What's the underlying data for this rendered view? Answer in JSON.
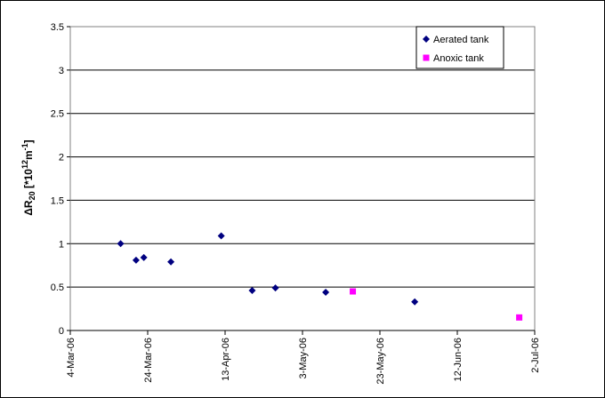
{
  "chart_data": {
    "type": "scatter",
    "title": "",
    "xlabel": "",
    "ylabel": "ΔR20 [*10^12 m^-1]",
    "ylabel_parts": {
      "main": "ΔR",
      "sub": "20",
      "bracket_open": " [*10",
      "sup1": "12",
      "unit": "m",
      "sup2": "-1",
      "bracket_close": "]"
    },
    "x_type": "date",
    "xlim": [
      "2006-03-04",
      "2006-07-02"
    ],
    "ylim": [
      0,
      3.5
    ],
    "x_ticks": [
      {
        "date": "2006-03-04",
        "label": "4-Mar-06"
      },
      {
        "date": "2006-03-24",
        "label": "24-Mar-06"
      },
      {
        "date": "2006-04-13",
        "label": "13-Apr-06"
      },
      {
        "date": "2006-05-03",
        "label": "3-May-06"
      },
      {
        "date": "2006-05-23",
        "label": "23-May-06"
      },
      {
        "date": "2006-06-12",
        "label": "12-Jun-06"
      },
      {
        "date": "2006-07-02",
        "label": "2-Jul-06"
      }
    ],
    "y_ticks": [
      {
        "value": 0,
        "label": "0"
      },
      {
        "value": 0.5,
        "label": "0.5"
      },
      {
        "value": 1,
        "label": "1"
      },
      {
        "value": 1.5,
        "label": "1.5"
      },
      {
        "value": 2,
        "label": "2"
      },
      {
        "value": 2.5,
        "label": "2.5"
      },
      {
        "value": 3,
        "label": "3"
      },
      {
        "value": 3.5,
        "label": "3.5"
      }
    ],
    "grid": "horizontal",
    "legend_position": "top-right",
    "series": [
      {
        "name": "Aerated tank",
        "marker": "diamond",
        "color": "#000080",
        "points": [
          {
            "x": "2006-03-17",
            "y": 1.0
          },
          {
            "x": "2006-03-21",
            "y": 0.81
          },
          {
            "x": "2006-03-23",
            "y": 0.84
          },
          {
            "x": "2006-03-30",
            "y": 0.79
          },
          {
            "x": "2006-04-12",
            "y": 1.09
          },
          {
            "x": "2006-04-20",
            "y": 0.46
          },
          {
            "x": "2006-04-26",
            "y": 0.49
          },
          {
            "x": "2006-05-09",
            "y": 0.44
          },
          {
            "x": "2006-06-01",
            "y": 0.33
          }
        ]
      },
      {
        "name": "Anoxic tank",
        "marker": "square",
        "color": "#FF00FF",
        "points": [
          {
            "x": "2006-05-16",
            "y": 0.45
          },
          {
            "x": "2006-06-28",
            "y": 0.15
          }
        ]
      }
    ]
  }
}
